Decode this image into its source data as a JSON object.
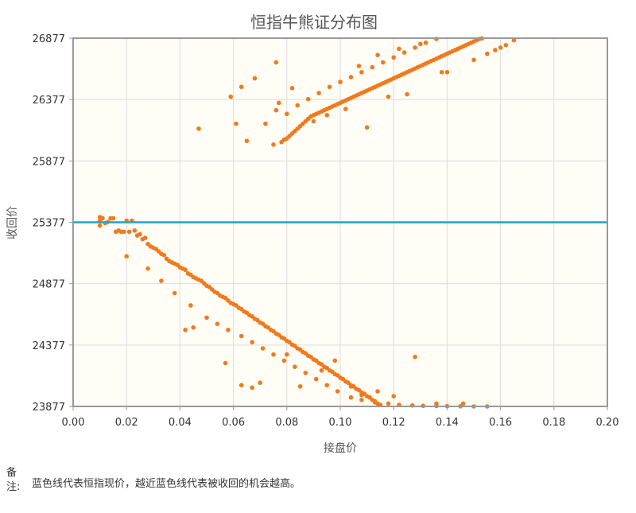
{
  "chart_data": {
    "type": "scatter",
    "title": "恒指牛熊证分布图",
    "xlabel": "接盘价",
    "ylabel": "收回价",
    "xlim": [
      0.0,
      0.2
    ],
    "ylim": [
      23877,
      26877
    ],
    "x_ticks": [
      "0.00",
      "0.02",
      "0.04",
      "0.06",
      "0.08",
      "0.10",
      "0.12",
      "0.14",
      "0.16",
      "0.18",
      "0.20"
    ],
    "y_ticks": [
      "23877",
      "24377",
      "24877",
      "25377",
      "25877",
      "26377",
      "26877"
    ],
    "grid": true,
    "reference_line": {
      "y": 25377,
      "color": "#1ea5c2"
    },
    "colors": {
      "points": "#f07a1e",
      "plot_bg": "#fffdf5",
      "grid": "#dddddd"
    },
    "series": [
      {
        "points": [
          [
            0.01,
            25420
          ],
          [
            0.01,
            25390
          ],
          [
            0.01,
            25350
          ],
          [
            0.011,
            25410
          ],
          [
            0.012,
            25370
          ],
          [
            0.013,
            25380
          ],
          [
            0.014,
            25410
          ],
          [
            0.015,
            25410
          ],
          [
            0.016,
            25300
          ],
          [
            0.017,
            25310
          ],
          [
            0.018,
            25300
          ],
          [
            0.019,
            25300
          ],
          [
            0.02,
            25390
          ],
          [
            0.021,
            25300
          ],
          [
            0.022,
            25390
          ],
          [
            0.023,
            25310
          ],
          [
            0.024,
            25270
          ],
          [
            0.025,
            25280
          ],
          [
            0.026,
            25240
          ],
          [
            0.027,
            25250
          ],
          [
            0.028,
            25200
          ],
          [
            0.029,
            25180
          ],
          [
            0.03,
            25170
          ],
          [
            0.031,
            25160
          ],
          [
            0.032,
            25140
          ],
          [
            0.033,
            25120
          ],
          [
            0.034,
            25110
          ],
          [
            0.035,
            25080
          ],
          [
            0.036,
            25060
          ],
          [
            0.037,
            25050
          ],
          [
            0.038,
            25040
          ],
          [
            0.039,
            25030
          ],
          [
            0.04,
            25010
          ],
          [
            0.041,
            25000
          ],
          [
            0.042,
            24990
          ],
          [
            0.043,
            24960
          ],
          [
            0.044,
            24950
          ],
          [
            0.045,
            24930
          ],
          [
            0.046,
            24920
          ],
          [
            0.047,
            24910
          ],
          [
            0.048,
            24900
          ],
          [
            0.049,
            24880
          ],
          [
            0.05,
            24860
          ],
          [
            0.051,
            24850
          ],
          [
            0.052,
            24830
          ],
          [
            0.053,
            24810
          ],
          [
            0.054,
            24800
          ],
          [
            0.055,
            24780
          ],
          [
            0.056,
            24770
          ],
          [
            0.057,
            24760
          ],
          [
            0.058,
            24740
          ],
          [
            0.059,
            24720
          ],
          [
            0.06,
            24710
          ],
          [
            0.061,
            24700
          ],
          [
            0.062,
            24680
          ],
          [
            0.063,
            24670
          ],
          [
            0.064,
            24650
          ],
          [
            0.065,
            24640
          ],
          [
            0.066,
            24620
          ],
          [
            0.067,
            24610
          ],
          [
            0.068,
            24590
          ],
          [
            0.069,
            24580
          ],
          [
            0.07,
            24560
          ],
          [
            0.071,
            24550
          ],
          [
            0.072,
            24530
          ],
          [
            0.073,
            24520
          ],
          [
            0.074,
            24500
          ],
          [
            0.075,
            24490
          ],
          [
            0.076,
            24470
          ],
          [
            0.077,
            24460
          ],
          [
            0.078,
            24440
          ],
          [
            0.079,
            24430
          ],
          [
            0.08,
            24410
          ],
          [
            0.081,
            24400
          ],
          [
            0.082,
            24380
          ],
          [
            0.083,
            24370
          ],
          [
            0.084,
            24350
          ],
          [
            0.085,
            24340
          ],
          [
            0.086,
            24320
          ],
          [
            0.087,
            24310
          ],
          [
            0.088,
            24290
          ],
          [
            0.089,
            24280
          ],
          [
            0.09,
            24260
          ],
          [
            0.091,
            24250
          ],
          [
            0.092,
            24230
          ],
          [
            0.093,
            24220
          ],
          [
            0.094,
            24200
          ],
          [
            0.095,
            24190
          ],
          [
            0.096,
            24170
          ],
          [
            0.097,
            24160
          ],
          [
            0.098,
            24140
          ],
          [
            0.099,
            24130
          ],
          [
            0.1,
            24110
          ],
          [
            0.101,
            24100
          ],
          [
            0.102,
            24080
          ],
          [
            0.103,
            24070
          ],
          [
            0.104,
            24050
          ],
          [
            0.105,
            24040
          ],
          [
            0.106,
            24020
          ],
          [
            0.107,
            24010
          ],
          [
            0.108,
            23990
          ],
          [
            0.109,
            23980
          ],
          [
            0.11,
            23960
          ],
          [
            0.111,
            23950
          ],
          [
            0.112,
            23930
          ],
          [
            0.113,
            23920
          ],
          [
            0.114,
            23900
          ],
          [
            0.115,
            23890
          ],
          [
            0.02,
            25100
          ],
          [
            0.028,
            25000
          ],
          [
            0.033,
            24900
          ],
          [
            0.038,
            24800
          ],
          [
            0.044,
            24700
          ],
          [
            0.05,
            24600
          ],
          [
            0.054,
            24550
          ],
          [
            0.058,
            24500
          ],
          [
            0.063,
            24450
          ],
          [
            0.067,
            24400
          ],
          [
            0.071,
            24350
          ],
          [
            0.075,
            24300
          ],
          [
            0.079,
            24250
          ],
          [
            0.083,
            24200
          ],
          [
            0.087,
            24150
          ],
          [
            0.091,
            24100
          ],
          [
            0.095,
            24050
          ],
          [
            0.099,
            24000
          ],
          [
            0.104,
            23950
          ],
          [
            0.108,
            23930
          ],
          [
            0.113,
            23910
          ],
          [
            0.118,
            23900
          ],
          [
            0.122,
            23890
          ],
          [
            0.127,
            23885
          ],
          [
            0.131,
            23882
          ],
          [
            0.136,
            23880
          ],
          [
            0.14,
            23879
          ],
          [
            0.145,
            23878
          ],
          [
            0.15,
            23877
          ],
          [
            0.155,
            23877
          ],
          [
            0.042,
            24500
          ],
          [
            0.045,
            24520
          ],
          [
            0.057,
            24230
          ],
          [
            0.063,
            24050
          ],
          [
            0.067,
            24030
          ],
          [
            0.07,
            24070
          ],
          [
            0.08,
            24300
          ],
          [
            0.085,
            24040
          ],
          [
            0.093,
            24170
          ],
          [
            0.098,
            24250
          ],
          [
            0.104,
            24040
          ],
          [
            0.108,
            23970
          ],
          [
            0.114,
            24000
          ],
          [
            0.12,
            23960
          ],
          [
            0.128,
            24280
          ],
          [
            0.136,
            23900
          ],
          [
            0.146,
            23900
          ],
          [
            0.047,
            26140
          ],
          [
            0.059,
            26400
          ],
          [
            0.061,
            26180
          ],
          [
            0.063,
            26480
          ],
          [
            0.065,
            26040
          ],
          [
            0.068,
            26550
          ],
          [
            0.072,
            26180
          ],
          [
            0.075,
            26010
          ],
          [
            0.076,
            26290
          ],
          [
            0.077,
            26350
          ],
          [
            0.078,
            26030
          ],
          [
            0.079,
            26050
          ],
          [
            0.08,
            26060
          ],
          [
            0.081,
            26080
          ],
          [
            0.082,
            26100
          ],
          [
            0.083,
            26120
          ],
          [
            0.084,
            26140
          ],
          [
            0.085,
            26160
          ],
          [
            0.086,
            26180
          ],
          [
            0.087,
            26200
          ],
          [
            0.088,
            26220
          ],
          [
            0.089,
            26240
          ],
          [
            0.09,
            26250
          ],
          [
            0.091,
            26260
          ],
          [
            0.092,
            26270
          ],
          [
            0.093,
            26280
          ],
          [
            0.094,
            26290
          ],
          [
            0.095,
            26300
          ],
          [
            0.096,
            26310
          ],
          [
            0.097,
            26320
          ],
          [
            0.098,
            26330
          ],
          [
            0.099,
            26340
          ],
          [
            0.1,
            26350
          ],
          [
            0.101,
            26360
          ],
          [
            0.102,
            26370
          ],
          [
            0.103,
            26380
          ],
          [
            0.104,
            26390
          ],
          [
            0.105,
            26400
          ],
          [
            0.106,
            26410
          ],
          [
            0.107,
            26420
          ],
          [
            0.108,
            26430
          ],
          [
            0.109,
            26440
          ],
          [
            0.11,
            26450
          ],
          [
            0.111,
            26460
          ],
          [
            0.112,
            26470
          ],
          [
            0.113,
            26480
          ],
          [
            0.114,
            26490
          ],
          [
            0.115,
            26500
          ],
          [
            0.116,
            26510
          ],
          [
            0.117,
            26520
          ],
          [
            0.118,
            26530
          ],
          [
            0.119,
            26540
          ],
          [
            0.12,
            26550
          ],
          [
            0.121,
            26560
          ],
          [
            0.122,
            26570
          ],
          [
            0.123,
            26580
          ],
          [
            0.124,
            26590
          ],
          [
            0.125,
            26600
          ],
          [
            0.126,
            26610
          ],
          [
            0.127,
            26620
          ],
          [
            0.128,
            26630
          ],
          [
            0.129,
            26640
          ],
          [
            0.13,
            26650
          ],
          [
            0.131,
            26660
          ],
          [
            0.132,
            26670
          ],
          [
            0.133,
            26680
          ],
          [
            0.134,
            26690
          ],
          [
            0.135,
            26700
          ],
          [
            0.136,
            26710
          ],
          [
            0.137,
            26720
          ],
          [
            0.138,
            26730
          ],
          [
            0.139,
            26740
          ],
          [
            0.14,
            26750
          ],
          [
            0.141,
            26760
          ],
          [
            0.142,
            26770
          ],
          [
            0.143,
            26780
          ],
          [
            0.144,
            26790
          ],
          [
            0.145,
            26800
          ],
          [
            0.146,
            26810
          ],
          [
            0.147,
            26820
          ],
          [
            0.148,
            26830
          ],
          [
            0.149,
            26840
          ],
          [
            0.15,
            26850
          ],
          [
            0.151,
            26860
          ],
          [
            0.152,
            26870
          ],
          [
            0.153,
            26875
          ],
          [
            0.08,
            26260
          ],
          [
            0.084,
            26330
          ],
          [
            0.088,
            26380
          ],
          [
            0.092,
            26430
          ],
          [
            0.096,
            26480
          ],
          [
            0.1,
            26520
          ],
          [
            0.104,
            26560
          ],
          [
            0.108,
            26600
          ],
          [
            0.112,
            26640
          ],
          [
            0.116,
            26680
          ],
          [
            0.12,
            26720
          ],
          [
            0.124,
            26760
          ],
          [
            0.128,
            26800
          ],
          [
            0.132,
            26840
          ],
          [
            0.136,
            26870
          ],
          [
            0.09,
            26200
          ],
          [
            0.095,
            26250
          ],
          [
            0.102,
            26300
          ],
          [
            0.11,
            26150
          ],
          [
            0.118,
            26400
          ],
          [
            0.125,
            26420
          ],
          [
            0.14,
            26600
          ],
          [
            0.15,
            26700
          ],
          [
            0.16,
            26800
          ],
          [
            0.165,
            26860
          ],
          [
            0.076,
            26680
          ],
          [
            0.082,
            26470
          ],
          [
            0.107,
            26650
          ],
          [
            0.114,
            26740
          ],
          [
            0.122,
            26790
          ],
          [
            0.13,
            26830
          ],
          [
            0.138,
            26600
          ],
          [
            0.155,
            26750
          ],
          [
            0.162,
            26820
          ],
          [
            0.158,
            26780
          ]
        ]
      }
    ]
  },
  "note": {
    "label": "备注:",
    "text": "蓝色线代表恒指现价，越近蓝色线代表被收回的机会越高。"
  }
}
